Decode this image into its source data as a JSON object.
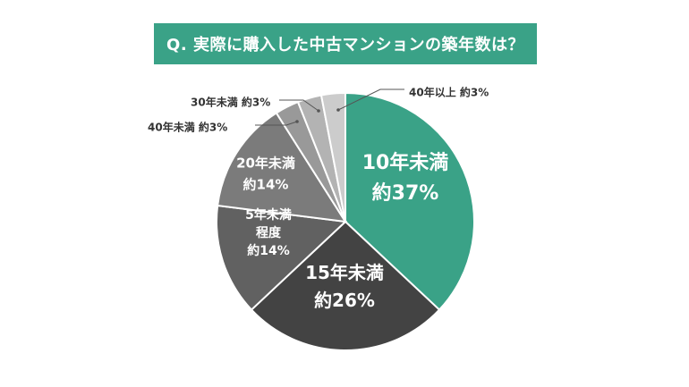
{
  "title": "Q. 実際に購入した中古マンションの築年数は？",
  "colors": {
    "title_bg": "#3aa287",
    "title_text": "#ffffff",
    "outside_label": "#333333",
    "leader_line": "#555555"
  },
  "chart_data": {
    "type": "pie",
    "start": "12 o'clock",
    "direction": "clockwise",
    "slices": [
      {
        "label": "10年未満",
        "label_lines": [
          "10年未満",
          "約37%"
        ],
        "value": 37,
        "color": "#3aa287",
        "text_color": "#ffffff",
        "label_position": "inside"
      },
      {
        "label": "15年未満",
        "label_lines": [
          "15年未満",
          "約26%"
        ],
        "value": 26,
        "color": "#434343",
        "text_color": "#ffffff",
        "label_position": "inside"
      },
      {
        "label": "5年未満程度",
        "label_lines": [
          "5年未満",
          "程度",
          "約14%"
        ],
        "value": 14,
        "color": "#616161",
        "text_color": "#ffffff",
        "label_position": "inside"
      },
      {
        "label": "20年未満",
        "label_lines": [
          "20年未満",
          "約14%"
        ],
        "value": 14,
        "color": "#7b7b7b",
        "text_color": "#ffffff",
        "label_position": "inside"
      },
      {
        "label": "40年未満",
        "label_lines": [
          "40年未満 約3%"
        ],
        "value": 3,
        "color": "#999999",
        "label_position": "outside"
      },
      {
        "label": "30年未満",
        "label_lines": [
          "30年未満 約3%"
        ],
        "value": 3,
        "color": "#b3b3b3",
        "label_position": "outside"
      },
      {
        "label": "40年以上",
        "label_lines": [
          "40年以上 約3%"
        ],
        "value": 3,
        "color": "#cccccc",
        "label_position": "outside"
      }
    ]
  }
}
